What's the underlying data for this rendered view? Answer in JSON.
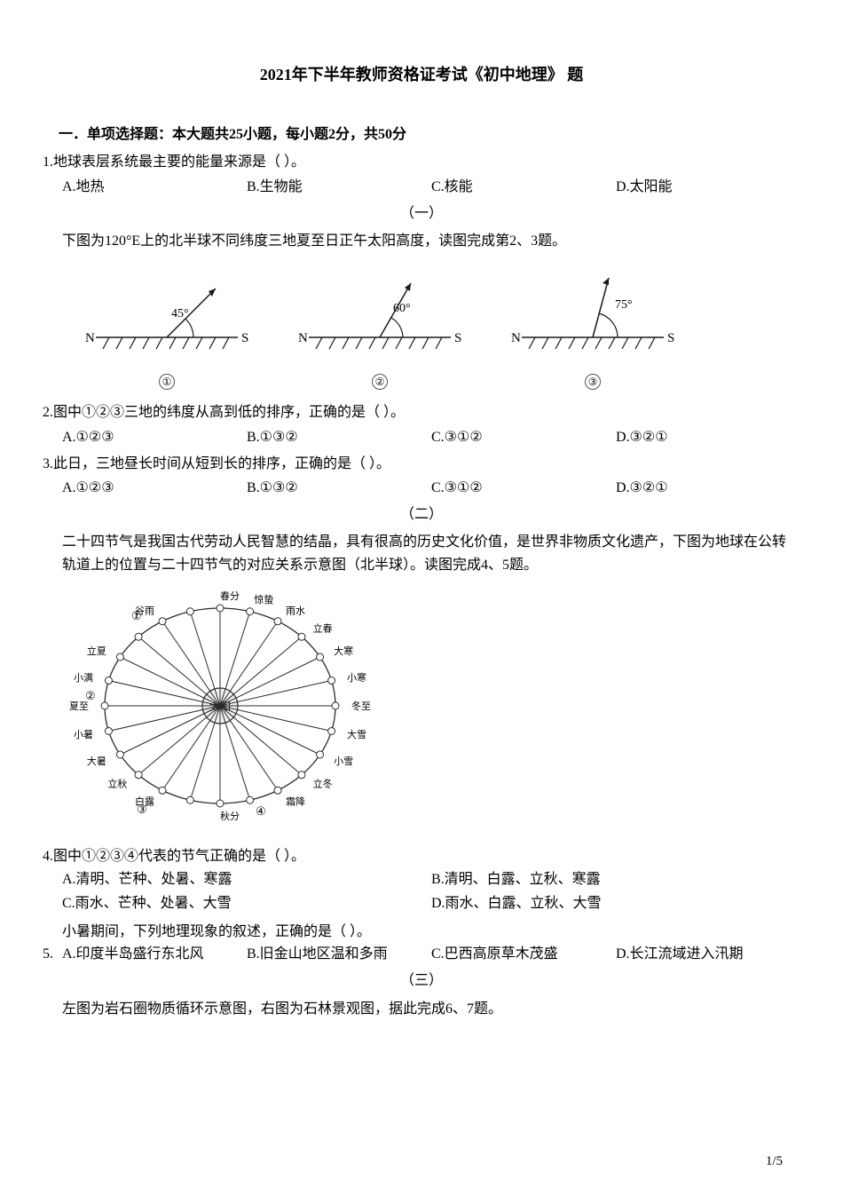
{
  "title": "2021年下半年教师资格证考试《初中地理》 题",
  "section1_header": "一．单项选择题：本大题共25小题，每小题2分，共50分",
  "q1": {
    "num": "1.",
    "stem": "地球表层系统最主要的能量来源是（  ）。",
    "A": "A.地热",
    "B": "B.生物能",
    "C": "C.核能",
    "D": "D.太阳能"
  },
  "group1_label": "（一）",
  "passage1": "下图为120°E上的北半球不同纬度三地夏至日正午太阳高度，读图完成第2、3题。",
  "diagrams": {
    "angles": [
      45,
      60,
      75
    ],
    "labels": [
      "45°",
      "60°",
      "75°"
    ],
    "circled": [
      "①",
      "②",
      "③"
    ],
    "N": "N",
    "S": "S",
    "stroke": "#1a1a1a",
    "hatch_stroke": "#1a1a1a"
  },
  "q2": {
    "num": "2.",
    "stem": "图中①②③三地的纬度从高到低的排序，正确的是（  ）。",
    "A": "A.①②③",
    "B": "B.①③②",
    "C": "C.③①②",
    "D": "D.③②①"
  },
  "q3": {
    "num": "3.",
    "stem": "此日，三地昼长时间从短到长的排序，正确的是（  ）。",
    "A": "A.①②③",
    "B": "B.①③②",
    "C": "C.③①②",
    "D": "D.③②①"
  },
  "group2_label": "（二）",
  "passage2": "二十四节气是我国古代劳动人民智慧的结晶，具有很高的历史文化价值，是世界非物质文化遗产，下图为地球在公转轨道上的位置与二十四节气的对应关系示意图（北半球）。读图完成4、5题。",
  "orbit": {
    "center_label": "太阳",
    "terms": [
      "春分",
      "惊蛰",
      "雨水",
      "立春",
      "大寒",
      "小寒",
      "冬至",
      "大雪",
      "小雪",
      "立冬",
      "霜降",
      "",
      "秋分",
      "白露",
      "",
      "立秋",
      "大暑",
      "小暑",
      "夏至",
      "小满",
      "立夏",
      "谷雨",
      "",
      ""
    ],
    "left_top": "①",
    "left_mid": "②",
    "bot_left": "③",
    "bot_right": "④",
    "labels_map": {
      "top_seq": [
        "谷雨",
        "",
        "春分",
        "惊蛰",
        "雨水"
      ],
      "right_seq": [
        "立春",
        "大寒",
        "小寒",
        "冬至",
        "大雪",
        "小雪",
        "立冬",
        "霜降"
      ],
      "bottom_seq": [
        "白露",
        "秋分"
      ],
      "left_seq": [
        "立秋",
        "大暑",
        "小暑",
        "夏至",
        "小满",
        "立夏"
      ]
    },
    "stroke": "#2b2b2b",
    "sun_fill": "#d8d8d8"
  },
  "q4": {
    "num": "4.",
    "stem": "图中①②③④代表的节气正确的是（  ）。",
    "A": "A.清明、芒种、处暑、寒露",
    "B": "B.清明、白露、立秋、寒露",
    "C": "C.雨水、芒种、处暑、大雪",
    "D": "D.雨水、白露、立秋、大雪"
  },
  "q5": {
    "num": "5.",
    "pre_stem": "小暑期间，下列地理现象的叙述，正确的是（  ）。",
    "A": "A.印度半岛盛行东北风",
    "B": "B.旧金山地区温和多雨",
    "C": "C.巴西高原草木茂盛",
    "D": "D.长江流域进入汛期"
  },
  "group3_label": "（三）",
  "passage3": "左图为岩石圈物质循环示意图，右图为石林景观图，据此完成6、7题。",
  "page_number": "1/5"
}
